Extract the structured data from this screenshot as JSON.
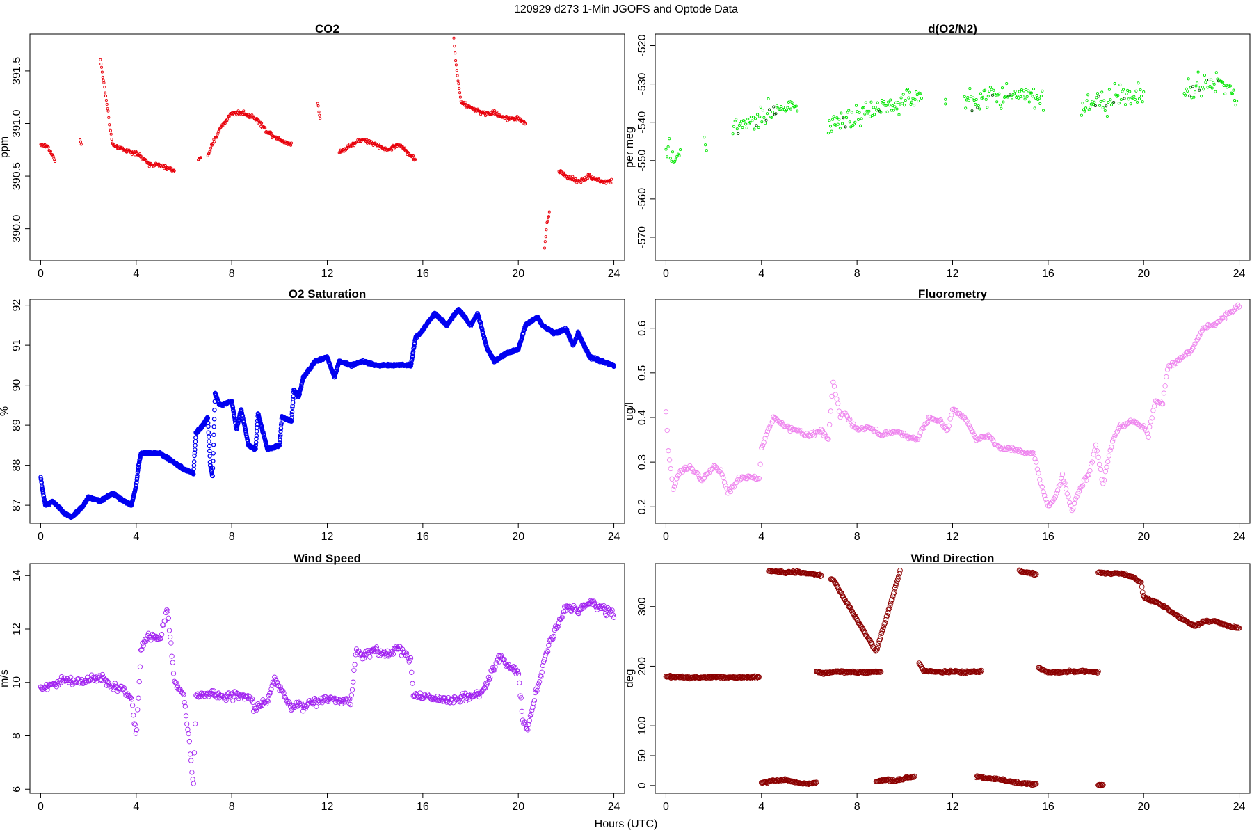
{
  "figure": {
    "supertitle": "120929   d273   1-Min  JGOFS and Optode Data",
    "xlabel": "Hours (UTC)"
  },
  "chart_data": [
    {
      "type": "scatter",
      "title": "CO2",
      "ylabel": "ppm",
      "color": "#e8000b",
      "marker": "small-circle",
      "xlim": [
        -0.45,
        24.45
      ],
      "ylim": [
        389.7,
        391.85
      ],
      "xticks": [
        0,
        4,
        8,
        12,
        16,
        20,
        24
      ],
      "yticks": [
        390.0,
        390.5,
        391.0,
        391.5
      ],
      "segments": [
        {
          "x": [
            0.0,
            0.3,
            0.6
          ],
          "y": [
            390.8,
            390.78,
            390.65
          ]
        },
        {
          "x": [
            1.65,
            1.7
          ],
          "y": [
            390.85,
            390.8
          ]
        },
        {
          "x": [
            2.5,
            2.7,
            3.0,
            3.5,
            4.0,
            4.5,
            5.0,
            5.6
          ],
          "y": [
            391.6,
            391.3,
            390.8,
            390.75,
            390.72,
            390.62,
            390.6,
            390.55
          ]
        },
        {
          "x": [
            6.6,
            6.7
          ],
          "y": [
            390.67,
            390.66
          ]
        },
        {
          "x": [
            7.0,
            7.5,
            8.0,
            8.5,
            9.0,
            9.5,
            10.0,
            10.5
          ],
          "y": [
            390.7,
            390.95,
            391.1,
            391.1,
            391.05,
            390.92,
            390.85,
            390.8
          ]
        },
        {
          "x": [
            11.6,
            11.7
          ],
          "y": [
            391.2,
            391.05
          ]
        },
        {
          "x": [
            12.5,
            13.0,
            13.5,
            14.0,
            14.5,
            15.0,
            15.5,
            15.7
          ],
          "y": [
            390.72,
            390.8,
            390.85,
            390.8,
            390.75,
            390.8,
            390.7,
            390.65
          ]
        },
        {
          "x": [
            17.3,
            17.4,
            17.6,
            18.0,
            18.5,
            19.0,
            19.5,
            20.0,
            20.3
          ],
          "y": [
            391.8,
            391.55,
            391.2,
            391.15,
            391.1,
            391.1,
            391.05,
            391.05,
            391.0
          ]
        },
        {
          "x": [
            21.1,
            21.2,
            21.3
          ],
          "y": [
            389.8,
            390.05,
            390.15
          ]
        },
        {
          "x": [
            21.7,
            22.0,
            22.5,
            23.0,
            23.5,
            23.9
          ],
          "y": [
            390.55,
            390.5,
            390.45,
            390.5,
            390.45,
            390.45
          ]
        }
      ]
    },
    {
      "type": "scatter",
      "title": "d(O2/N2)",
      "ylabel": "per meg",
      "color": "#00e600",
      "marker": "small-circle",
      "xlim": [
        -0.45,
        24.45
      ],
      "ylim": [
        -576,
        -517
      ],
      "xticks": [
        0,
        4,
        8,
        12,
        16,
        20,
        24
      ],
      "yticks": [
        -570,
        -560,
        -550,
        -540,
        -530,
        -520
      ],
      "segments": [
        {
          "x": [
            0.0,
            0.3,
            0.6
          ],
          "y": [
            -546,
            -549,
            -548
          ]
        },
        {
          "x": [
            1.6,
            1.7
          ],
          "y": [
            -545,
            -546
          ]
        },
        {
          "x": [
            2.8,
            3.5,
            4.0,
            4.5,
            5.0,
            5.5
          ],
          "y": [
            -541,
            -539,
            -538,
            -537,
            -536,
            -536
          ]
        },
        {
          "x": [
            6.8,
            7.5,
            8.0,
            8.5,
            9.0,
            9.5,
            10.0,
            10.7
          ],
          "y": [
            -540,
            -539,
            -538,
            -537,
            -536,
            -536,
            -535,
            -533
          ]
        },
        {
          "x": [
            11.7
          ],
          "y": [
            -534
          ]
        },
        {
          "x": [
            12.5,
            13.0,
            13.5,
            14.0,
            14.5,
            15.0,
            15.8
          ],
          "y": [
            -534,
            -535,
            -533,
            -534,
            -533,
            -533,
            -534
          ]
        },
        {
          "x": [
            17.4,
            18.0,
            18.5,
            19.0,
            19.5,
            20.0
          ],
          "y": [
            -536,
            -534,
            -535,
            -533,
            -534,
            -532
          ]
        },
        {
          "x": [
            21.7,
            22.0,
            22.5,
            23.0,
            23.5,
            23.9
          ],
          "y": [
            -531,
            -531,
            -530,
            -529,
            -531,
            -533
          ]
        }
      ]
    },
    {
      "type": "scatter",
      "title": "O2 Saturation",
      "ylabel": "%",
      "color": "#0000f0",
      "marker": "circle",
      "xlim": [
        -0.45,
        24.45
      ],
      "ylim": [
        86.55,
        92.15
      ],
      "xticks": [
        0,
        4,
        8,
        12,
        16,
        20,
        24
      ],
      "yticks": [
        87,
        88,
        89,
        90,
        91,
        92
      ],
      "x": [
        0.0,
        0.1,
        0.2,
        0.5,
        1.0,
        1.3,
        1.8,
        2.0,
        2.5,
        3.0,
        3.5,
        3.8,
        4.0,
        4.1,
        4.2,
        5.0,
        5.5,
        6.0,
        6.4,
        6.5,
        6.8,
        7.0,
        7.1,
        7.2,
        7.3,
        7.5,
        8.0,
        8.2,
        8.4,
        8.7,
        9.0,
        9.1,
        9.5,
        10.0,
        10.1,
        10.5,
        10.6,
        10.8,
        11.0,
        11.5,
        12.0,
        12.3,
        12.5,
        13.0,
        13.5,
        14.0,
        14.5,
        15.0,
        15.5,
        15.7,
        15.9,
        16.5,
        17.0,
        17.5,
        18.0,
        18.3,
        18.7,
        19.0,
        19.5,
        20.0,
        20.3,
        20.8,
        21.0,
        21.5,
        22.0,
        22.3,
        22.5,
        23.0,
        23.5,
        24.0
      ],
      "y": [
        87.7,
        87.3,
        87.0,
        87.1,
        86.8,
        86.7,
        87.0,
        87.2,
        87.1,
        87.3,
        87.1,
        87.0,
        87.5,
        88.0,
        88.3,
        88.3,
        88.1,
        87.9,
        87.8,
        88.8,
        89.0,
        89.2,
        88.0,
        87.7,
        89.8,
        89.5,
        89.6,
        88.9,
        89.4,
        88.5,
        88.4,
        89.3,
        88.4,
        88.5,
        89.2,
        89.1,
        89.9,
        89.7,
        90.2,
        90.6,
        90.7,
        90.2,
        90.6,
        90.5,
        90.6,
        90.5,
        90.5,
        90.5,
        90.5,
        91.2,
        91.3,
        91.8,
        91.5,
        91.9,
        91.5,
        91.8,
        90.9,
        90.6,
        90.8,
        90.9,
        91.5,
        91.7,
        91.5,
        91.3,
        91.4,
        91.0,
        91.3,
        90.7,
        90.6,
        90.5
      ]
    },
    {
      "type": "scatter",
      "title": "Fluorometry",
      "ylabel": "ug/l",
      "color": "#ee82ee",
      "marker": "circle",
      "xlim": [
        -0.45,
        24.45
      ],
      "ylim": [
        0.163,
        0.665
      ],
      "xticks": [
        0,
        4,
        8,
        12,
        16,
        20,
        24
      ],
      "yticks": [
        0.2,
        0.3,
        0.4,
        0.5,
        0.6
      ],
      "x": [
        0.0,
        0.1,
        0.3,
        0.6,
        1.0,
        1.5,
        2.0,
        2.3,
        2.6,
        3.0,
        3.5,
        3.9,
        4.0,
        4.3,
        4.5,
        5.0,
        5.5,
        6.0,
        6.5,
        6.8,
        7.0,
        7.3,
        7.5,
        8.0,
        8.5,
        9.0,
        9.5,
        10.0,
        10.5,
        11.0,
        11.5,
        11.8,
        12.0,
        12.5,
        13.0,
        13.5,
        14.0,
        14.5,
        15.0,
        15.4,
        15.7,
        16.0,
        16.3,
        16.6,
        17.0,
        17.3,
        17.7,
        18.0,
        18.3,
        18.7,
        19.0,
        19.5,
        20.0,
        20.2,
        20.5,
        20.8,
        21.0,
        21.5,
        22.0,
        22.5,
        23.0,
        23.5,
        24.0
      ],
      "y": [
        0.41,
        0.33,
        0.24,
        0.28,
        0.29,
        0.26,
        0.29,
        0.28,
        0.23,
        0.26,
        0.27,
        0.26,
        0.33,
        0.38,
        0.4,
        0.38,
        0.37,
        0.36,
        0.37,
        0.35,
        0.48,
        0.4,
        0.41,
        0.37,
        0.38,
        0.36,
        0.37,
        0.36,
        0.35,
        0.4,
        0.39,
        0.37,
        0.42,
        0.4,
        0.35,
        0.36,
        0.33,
        0.33,
        0.32,
        0.32,
        0.25,
        0.2,
        0.22,
        0.27,
        0.19,
        0.24,
        0.27,
        0.34,
        0.25,
        0.35,
        0.38,
        0.39,
        0.38,
        0.36,
        0.44,
        0.43,
        0.51,
        0.53,
        0.55,
        0.6,
        0.61,
        0.63,
        0.65
      ]
    },
    {
      "type": "scatter",
      "title": "Wind Speed",
      "ylabel": "m/s",
      "color": "#a020f0",
      "marker": "circle",
      "xlim": [
        -0.45,
        24.45
      ],
      "ylim": [
        5.85,
        14.45
      ],
      "xticks": [
        0,
        4,
        8,
        12,
        16,
        20,
        24
      ],
      "yticks": [
        6,
        8,
        10,
        12,
        14
      ],
      "x": [
        0.0,
        0.5,
        1.0,
        1.5,
        2.0,
        2.5,
        2.8,
        3.0,
        3.5,
        3.8,
        4.0,
        4.2,
        4.5,
        5.0,
        5.3,
        5.6,
        6.0,
        6.2,
        6.4,
        6.5,
        7.0,
        7.5,
        8.0,
        8.5,
        8.8,
        9.0,
        9.5,
        9.8,
        10.0,
        10.3,
        10.5,
        10.8,
        11.0,
        11.5,
        12.0,
        12.5,
        13.0,
        13.2,
        13.5,
        14.0,
        14.5,
        15.0,
        15.5,
        15.6,
        16.0,
        16.5,
        17.0,
        17.5,
        18.0,
        18.5,
        19.0,
        19.3,
        19.6,
        20.0,
        20.2,
        20.4,
        20.7,
        21.0,
        21.3,
        21.6,
        22.0,
        22.5,
        23.0,
        23.5,
        24.0
      ],
      "y": [
        9.8,
        9.9,
        10.1,
        10.0,
        10.1,
        10.2,
        10.0,
        9.8,
        9.7,
        9.4,
        8.0,
        11.2,
        11.8,
        11.6,
        12.8,
        10.0,
        9.5,
        8.0,
        6.1,
        9.5,
        9.6,
        9.5,
        9.5,
        9.5,
        9.4,
        9.0,
        9.3,
        10.2,
        9.8,
        9.4,
        9.0,
        9.2,
        9.1,
        9.3,
        9.4,
        9.3,
        9.3,
        11.2,
        11.0,
        11.2,
        11.0,
        11.3,
        10.8,
        9.5,
        9.5,
        9.4,
        9.3,
        9.4,
        9.5,
        9.6,
        10.6,
        11.0,
        10.6,
        10.4,
        8.5,
        8.2,
        9.5,
        10.5,
        11.5,
        12.0,
        12.8,
        12.7,
        13.0,
        12.8,
        12.5
      ]
    },
    {
      "type": "scatter",
      "title": "Wind Direction",
      "ylabel": "deg",
      "color": "#8b0000",
      "marker": "circle",
      "xlim": [
        -0.45,
        24.45
      ],
      "ylim": [
        -13,
        372
      ],
      "xticks": [
        0,
        4,
        8,
        12,
        16,
        20,
        24
      ],
      "yticks": [
        0,
        50,
        100,
        200,
        300
      ],
      "segments": [
        {
          "x": [
            0.0,
            1.0,
            2.0,
            3.0,
            3.9
          ],
          "y": [
            183,
            181,
            182,
            181,
            182
          ]
        },
        {
          "x": [
            4.0,
            4.5,
            5.0,
            5.5,
            6.0,
            6.3
          ],
          "y": [
            5,
            8,
            10,
            5,
            3,
            4
          ]
        },
        {
          "x": [
            4.3,
            5.0,
            5.5,
            6.0,
            6.5
          ],
          "y": [
            360,
            357,
            358,
            355,
            352
          ]
        },
        {
          "x": [
            6.3,
            6.6,
            7.0,
            8.0,
            9.0
          ],
          "y": [
            192,
            188,
            191,
            190,
            190
          ]
        },
        {
          "x": [
            6.9,
            7.0,
            8.8,
            9.8
          ],
          "y": [
            347,
            345,
            224,
            358
          ]
        },
        {
          "x": [
            8.8,
            9.2,
            9.6,
            10.0,
            10.4
          ],
          "y": [
            6,
            10,
            8,
            12,
            15
          ]
        },
        {
          "x": [
            10.6,
            10.8,
            11.5,
            12.0,
            12.5,
            13.2
          ],
          "y": [
            205,
            192,
            190,
            191,
            190,
            191
          ]
        },
        {
          "x": [
            13.0,
            13.5,
            14.0,
            14.5,
            15.0,
            15.5
          ],
          "y": [
            15,
            12,
            10,
            6,
            3,
            2
          ]
        },
        {
          "x": [
            14.8,
            15.0,
            15.3,
            15.5
          ],
          "y": [
            360,
            357,
            356,
            353
          ]
        },
        {
          "x": [
            15.6,
            16.0,
            16.5,
            17.0,
            17.5,
            18.1
          ],
          "y": [
            197,
            190,
            190,
            191,
            192,
            190
          ]
        },
        {
          "x": [
            18.1,
            18.3
          ],
          "y": [
            1,
            1
          ]
        },
        {
          "x": [
            18.1,
            18.5,
            19.0,
            19.5,
            19.9,
            20.0,
            20.5,
            21.0,
            21.5,
            22.0,
            22.2,
            22.5,
            23.0,
            23.5,
            24.0
          ],
          "y": [
            357,
            355,
            356,
            350,
            340,
            316,
            308,
            296,
            282,
            270,
            268,
            275,
            275,
            268,
            263
          ]
        }
      ]
    }
  ]
}
